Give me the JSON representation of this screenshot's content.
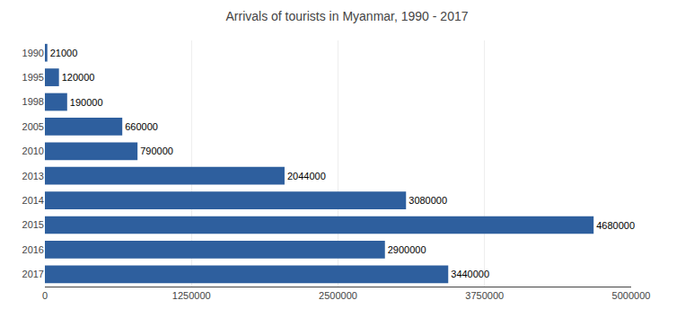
{
  "chart_data": {
    "type": "bar",
    "orientation": "horizontal",
    "title": "Arrivals of tourists in Myanmar, 1990 - 2017",
    "categories": [
      "1990",
      "1995",
      "1998",
      "2005",
      "2010",
      "2013",
      "2014",
      "2015",
      "2016",
      "2017"
    ],
    "values": [
      21000,
      120000,
      190000,
      660000,
      790000,
      2044000,
      3080000,
      4680000,
      2900000,
      3440000
    ],
    "color": "#2E5F9E",
    "xlim": [
      0,
      5000000
    ],
    "xticks": [
      0,
      1250000,
      2500000,
      3750000,
      5000000
    ],
    "grid": true,
    "data_labels": true
  }
}
